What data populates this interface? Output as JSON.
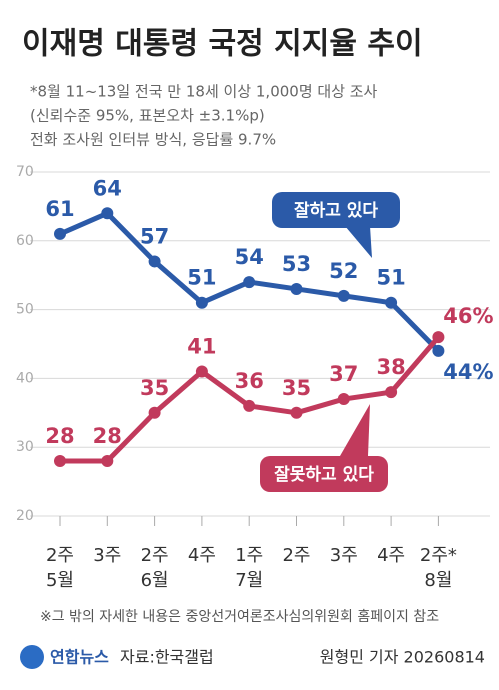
{
  "chart_data": {
    "type": "line",
    "title": "이재명 대통령 국정 지지율 추이",
    "subtitle": [
      "*8월 11~13일 전국 만 18세 이상 1,000명 대상 조사",
      "(신뢰수준 95%, 표본오차 ±3.1%p)",
      "전화 조사원 인터뷰 방식, 응답률 9.7%"
    ],
    "categories": [
      "2주",
      "3주",
      "2주",
      "4주",
      "1주",
      "2주",
      "3주",
      "4주",
      "2주*"
    ],
    "month_labels": [
      "5월",
      null,
      "6월",
      null,
      "7월",
      null,
      null,
      null,
      "8월"
    ],
    "series": [
      {
        "name": "잘하고 있다",
        "color": "#2b5aa8",
        "values": [
          61,
          64,
          57,
          51,
          54,
          53,
          52,
          51,
          44
        ],
        "value_labels": [
          "61",
          "64",
          "57",
          "51",
          "54",
          "53",
          "52",
          "51",
          "44%"
        ]
      },
      {
        "name": "잘못하고 있다",
        "color": "#c13a5c",
        "values": [
          28,
          28,
          35,
          41,
          36,
          35,
          37,
          38,
          46
        ],
        "value_labels": [
          "28",
          "28",
          "35",
          "41",
          "36",
          "35",
          "37",
          "38",
          "46%"
        ]
      }
    ],
    "ylim": [
      20,
      70
    ],
    "yticks": [
      20,
      30,
      40,
      50,
      60,
      70
    ],
    "grid": true,
    "footnote": "※그 밖의 자세한 내용은 중앙선거여론조사심의위원회 홈페이지 참조",
    "logo": "연합뉴스",
    "source": "자료:한국갤럽",
    "credit": "원형민 기자 20260814"
  }
}
